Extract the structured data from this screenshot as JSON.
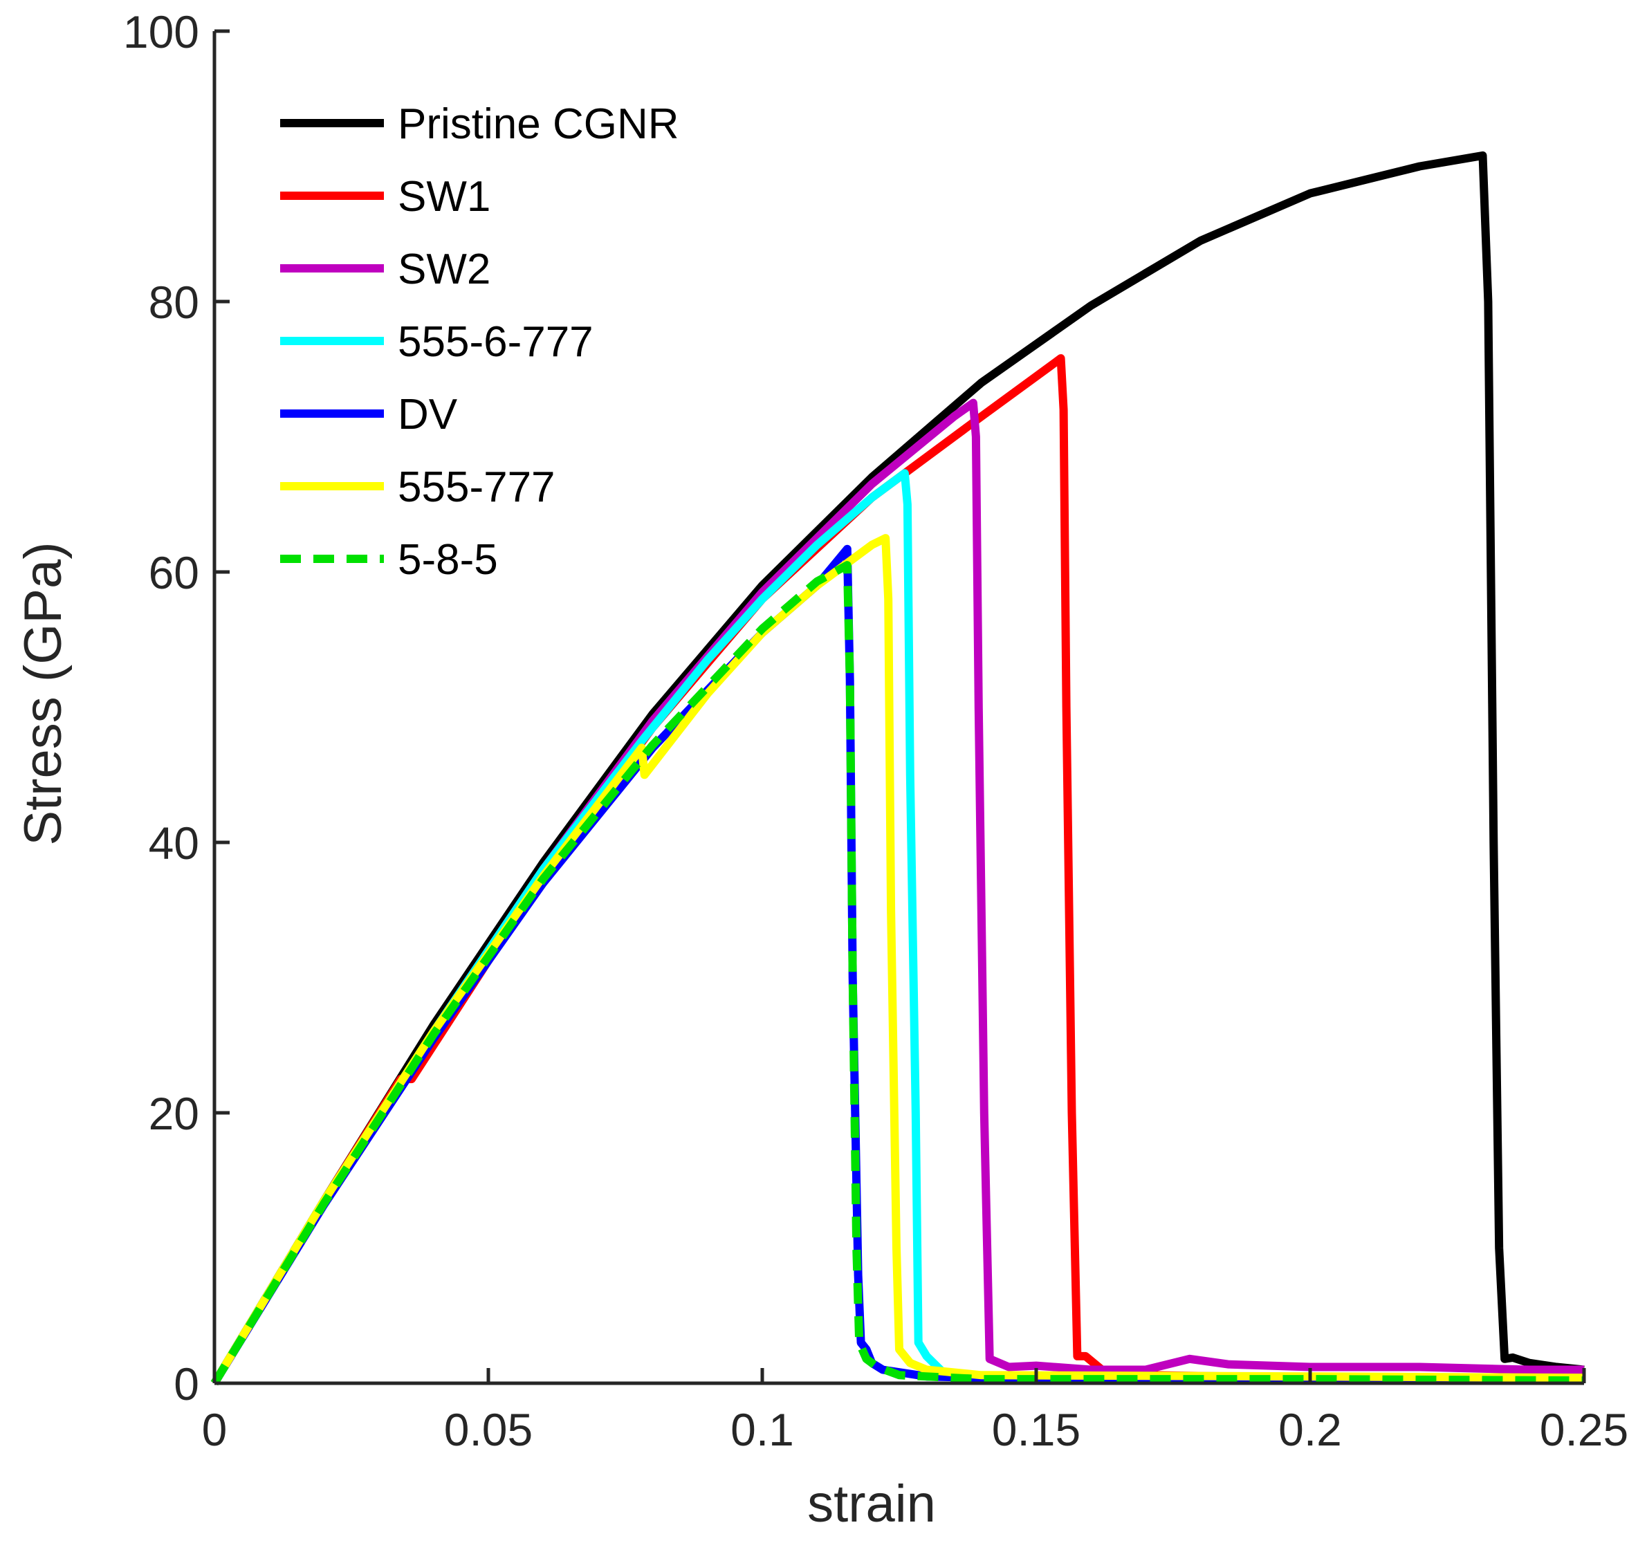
{
  "chart_data": {
    "type": "line",
    "title": "",
    "xlabel": "strain",
    "ylabel": "Stress (GPa)",
    "xlim": [
      0,
      0.25
    ],
    "ylim": [
      0,
      100
    ],
    "grid": false,
    "legend_position": "top-left",
    "x_ticks": [
      0,
      0.05,
      0.1,
      0.15,
      0.2,
      0.25
    ],
    "x_tick_labels": [
      "0",
      "0.05",
      "0.1",
      "0.15",
      "0.2",
      "0.25"
    ],
    "y_ticks": [
      0,
      20,
      40,
      60,
      80,
      100
    ],
    "y_tick_labels": [
      "0",
      "20",
      "40",
      "60",
      "80",
      "100"
    ],
    "series": [
      {
        "name": "Pristine CGNR",
        "color": "#000000",
        "dash": false,
        "points": [
          [
            0,
            0
          ],
          [
            0.02,
            13.5
          ],
          [
            0.04,
            26.5
          ],
          [
            0.06,
            38.5
          ],
          [
            0.08,
            49.5
          ],
          [
            0.1,
            59.0
          ],
          [
            0.12,
            67.0
          ],
          [
            0.14,
            74.0
          ],
          [
            0.16,
            79.7
          ],
          [
            0.18,
            84.5
          ],
          [
            0.2,
            88.0
          ],
          [
            0.22,
            90.0
          ],
          [
            0.2315,
            90.8
          ],
          [
            0.2325,
            80.0
          ],
          [
            0.2335,
            40.0
          ],
          [
            0.2345,
            10.0
          ],
          [
            0.2355,
            1.8
          ],
          [
            0.237,
            1.9
          ],
          [
            0.24,
            1.5
          ],
          [
            0.245,
            1.2
          ],
          [
            0.25,
            1.0
          ]
        ]
      },
      {
        "name": "SW1",
        "color": "#ff0000",
        "dash": false,
        "points": [
          [
            0,
            0
          ],
          [
            0.02,
            13.5
          ],
          [
            0.034,
            22.5
          ],
          [
            0.036,
            22.5
          ],
          [
            0.06,
            37.5
          ],
          [
            0.08,
            48.5
          ],
          [
            0.1,
            58.0
          ],
          [
            0.12,
            65.5
          ],
          [
            0.14,
            71.5
          ],
          [
            0.1535,
            75.5
          ],
          [
            0.1545,
            75.8
          ],
          [
            0.155,
            72.0
          ],
          [
            0.1555,
            50.0
          ],
          [
            0.1565,
            20.0
          ],
          [
            0.1575,
            2.0
          ],
          [
            0.159,
            2.0
          ],
          [
            0.162,
            1.0
          ],
          [
            0.17,
            0.6
          ],
          [
            0.2,
            0.4
          ],
          [
            0.25,
            0.3
          ]
        ]
      },
      {
        "name": "SW2",
        "color": "#bf00bf",
        "dash": false,
        "points": [
          [
            0,
            0
          ],
          [
            0.02,
            13.5
          ],
          [
            0.04,
            26.0
          ],
          [
            0.06,
            38.0
          ],
          [
            0.08,
            49.0
          ],
          [
            0.1,
            58.5
          ],
          [
            0.12,
            66.5
          ],
          [
            0.135,
            71.5
          ],
          [
            0.1385,
            72.5
          ],
          [
            0.139,
            70.0
          ],
          [
            0.1395,
            50.0
          ],
          [
            0.1405,
            20.0
          ],
          [
            0.1415,
            1.8
          ],
          [
            0.145,
            1.2
          ],
          [
            0.15,
            1.3
          ],
          [
            0.16,
            1.0
          ],
          [
            0.17,
            1.0
          ],
          [
            0.178,
            1.8
          ],
          [
            0.185,
            1.4
          ],
          [
            0.2,
            1.2
          ],
          [
            0.22,
            1.2
          ],
          [
            0.24,
            1.0
          ],
          [
            0.25,
            1.0
          ]
        ]
      },
      {
        "name": "555-6-777",
        "color": "#00ffff",
        "dash": false,
        "points": [
          [
            0,
            0
          ],
          [
            0.02,
            13.5
          ],
          [
            0.04,
            26.0
          ],
          [
            0.06,
            38.0
          ],
          [
            0.078,
            47.5
          ],
          [
            0.09,
            53.5
          ],
          [
            0.1,
            58.0
          ],
          [
            0.11,
            62.0
          ],
          [
            0.12,
            65.5
          ],
          [
            0.126,
            67.3
          ],
          [
            0.1265,
            65.0
          ],
          [
            0.127,
            45.0
          ],
          [
            0.128,
            20.0
          ],
          [
            0.1285,
            3.0
          ],
          [
            0.13,
            2.0
          ],
          [
            0.133,
            0.8
          ],
          [
            0.14,
            0.5
          ],
          [
            0.2,
            0.4
          ],
          [
            0.25,
            0.3
          ]
        ]
      },
      {
        "name": "DV",
        "color": "#0000ff",
        "dash": false,
        "points": [
          [
            0,
            0
          ],
          [
            0.02,
            13.2
          ],
          [
            0.04,
            25.5
          ],
          [
            0.06,
            37.0
          ],
          [
            0.08,
            47.0
          ],
          [
            0.1,
            55.5
          ],
          [
            0.11,
            59.0
          ],
          [
            0.1155,
            61.7
          ],
          [
            0.116,
            52.0
          ],
          [
            0.1165,
            30.0
          ],
          [
            0.1175,
            8.0
          ],
          [
            0.118,
            3.0
          ],
          [
            0.119,
            2.5
          ],
          [
            0.12,
            1.5
          ],
          [
            0.122,
            1.0
          ],
          [
            0.13,
            0.5
          ],
          [
            0.15,
            0.3
          ],
          [
            0.2,
            0.3
          ],
          [
            0.25,
            0.2
          ]
        ]
      },
      {
        "name": "555-777",
        "color": "#ffff00",
        "dash": false,
        "points": [
          [
            0,
            0
          ],
          [
            0.02,
            13.5
          ],
          [
            0.04,
            26.0
          ],
          [
            0.06,
            37.5
          ],
          [
            0.078,
            47.0
          ],
          [
            0.0785,
            45.0
          ],
          [
            0.09,
            51.0
          ],
          [
            0.1,
            55.5
          ],
          [
            0.11,
            59.0
          ],
          [
            0.12,
            62.0
          ],
          [
            0.1225,
            62.5
          ],
          [
            0.123,
            58.0
          ],
          [
            0.1235,
            35.0
          ],
          [
            0.1245,
            10.0
          ],
          [
            0.125,
            2.5
          ],
          [
            0.127,
            1.5
          ],
          [
            0.13,
            1.0
          ],
          [
            0.14,
            0.6
          ],
          [
            0.2,
            0.5
          ],
          [
            0.25,
            0.4
          ]
        ]
      },
      {
        "name": "5-8-5",
        "color": "#00e000",
        "dash": true,
        "points": [
          [
            0,
            0
          ],
          [
            0.02,
            13.3
          ],
          [
            0.04,
            25.8
          ],
          [
            0.06,
            37.3
          ],
          [
            0.08,
            47.2
          ],
          [
            0.1,
            55.8
          ],
          [
            0.11,
            59.3
          ],
          [
            0.1155,
            60.5
          ],
          [
            0.116,
            52.0
          ],
          [
            0.1165,
            30.0
          ],
          [
            0.1172,
            10.0
          ],
          [
            0.1177,
            3.0
          ],
          [
            0.119,
            1.8
          ],
          [
            0.121,
            1.2
          ],
          [
            0.125,
            0.6
          ],
          [
            0.14,
            0.3
          ],
          [
            0.2,
            0.3
          ],
          [
            0.25,
            0.2
          ]
        ]
      }
    ]
  }
}
